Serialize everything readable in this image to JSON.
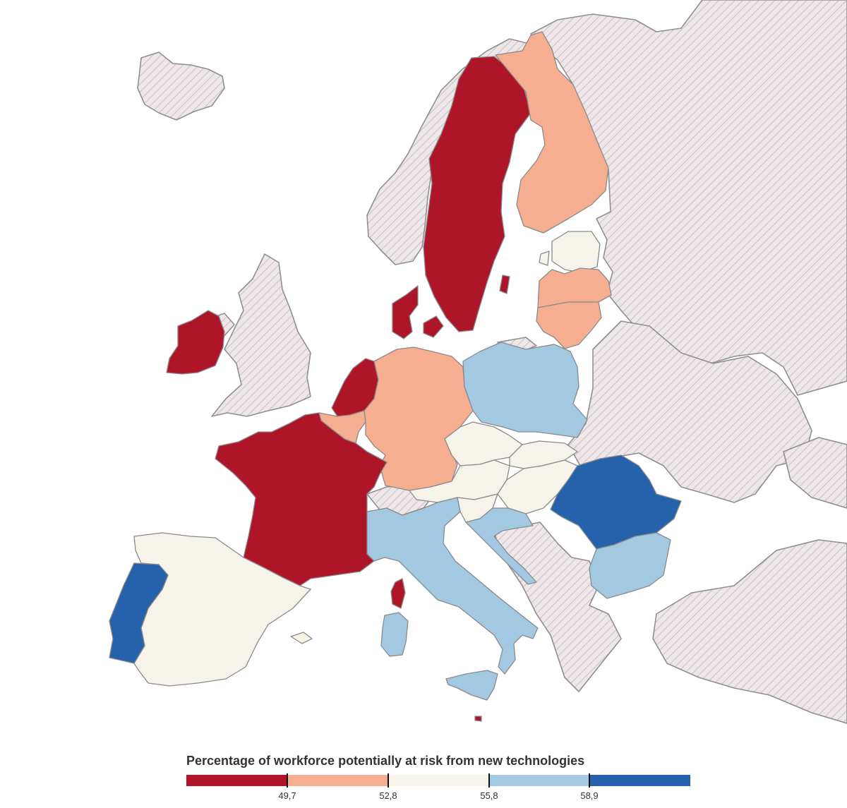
{
  "legend": {
    "title": "Percentage of workforce potentially at risk from new technologies",
    "thresholds": [
      "49,7",
      "52,8",
      "55,8",
      "58,9"
    ],
    "colors": [
      "#ae1528",
      "#f5ae8f",
      "#f5f3ea",
      "#a3c8e2",
      "#2562ab"
    ]
  },
  "map": {
    "no_data_fill": "#ede7ea",
    "no_data_hatch": "#c9bfc2",
    "countries": [
      {
        "name": "Sweden",
        "class": 0
      },
      {
        "name": "Denmark",
        "class": 0
      },
      {
        "name": "Ireland",
        "class": 0
      },
      {
        "name": "Netherlands",
        "class": 0
      },
      {
        "name": "France",
        "class": 0
      },
      {
        "name": "Corsica",
        "class": 0
      },
      {
        "name": "Malta",
        "class": 0
      },
      {
        "name": "Finland",
        "class": 1
      },
      {
        "name": "Germany",
        "class": 1
      },
      {
        "name": "Belgium",
        "class": 1
      },
      {
        "name": "Latvia",
        "class": 1
      },
      {
        "name": "Lithuania",
        "class": 1
      },
      {
        "name": "Estonia",
        "class": 2
      },
      {
        "name": "Czechia",
        "class": 2
      },
      {
        "name": "Slovakia",
        "class": 2
      },
      {
        "name": "Austria",
        "class": 2
      },
      {
        "name": "Hungary",
        "class": 2
      },
      {
        "name": "Slovenia",
        "class": 2
      },
      {
        "name": "Spain",
        "class": 2
      },
      {
        "name": "Poland",
        "class": 3
      },
      {
        "name": "Italy",
        "class": 3
      },
      {
        "name": "Sardinia",
        "class": 3
      },
      {
        "name": "Sicily",
        "class": 3
      },
      {
        "name": "Croatia",
        "class": 3
      },
      {
        "name": "Bulgaria",
        "class": 3
      },
      {
        "name": "Portugal",
        "class": 4
      },
      {
        "name": "Romania",
        "class": 4
      }
    ]
  }
}
